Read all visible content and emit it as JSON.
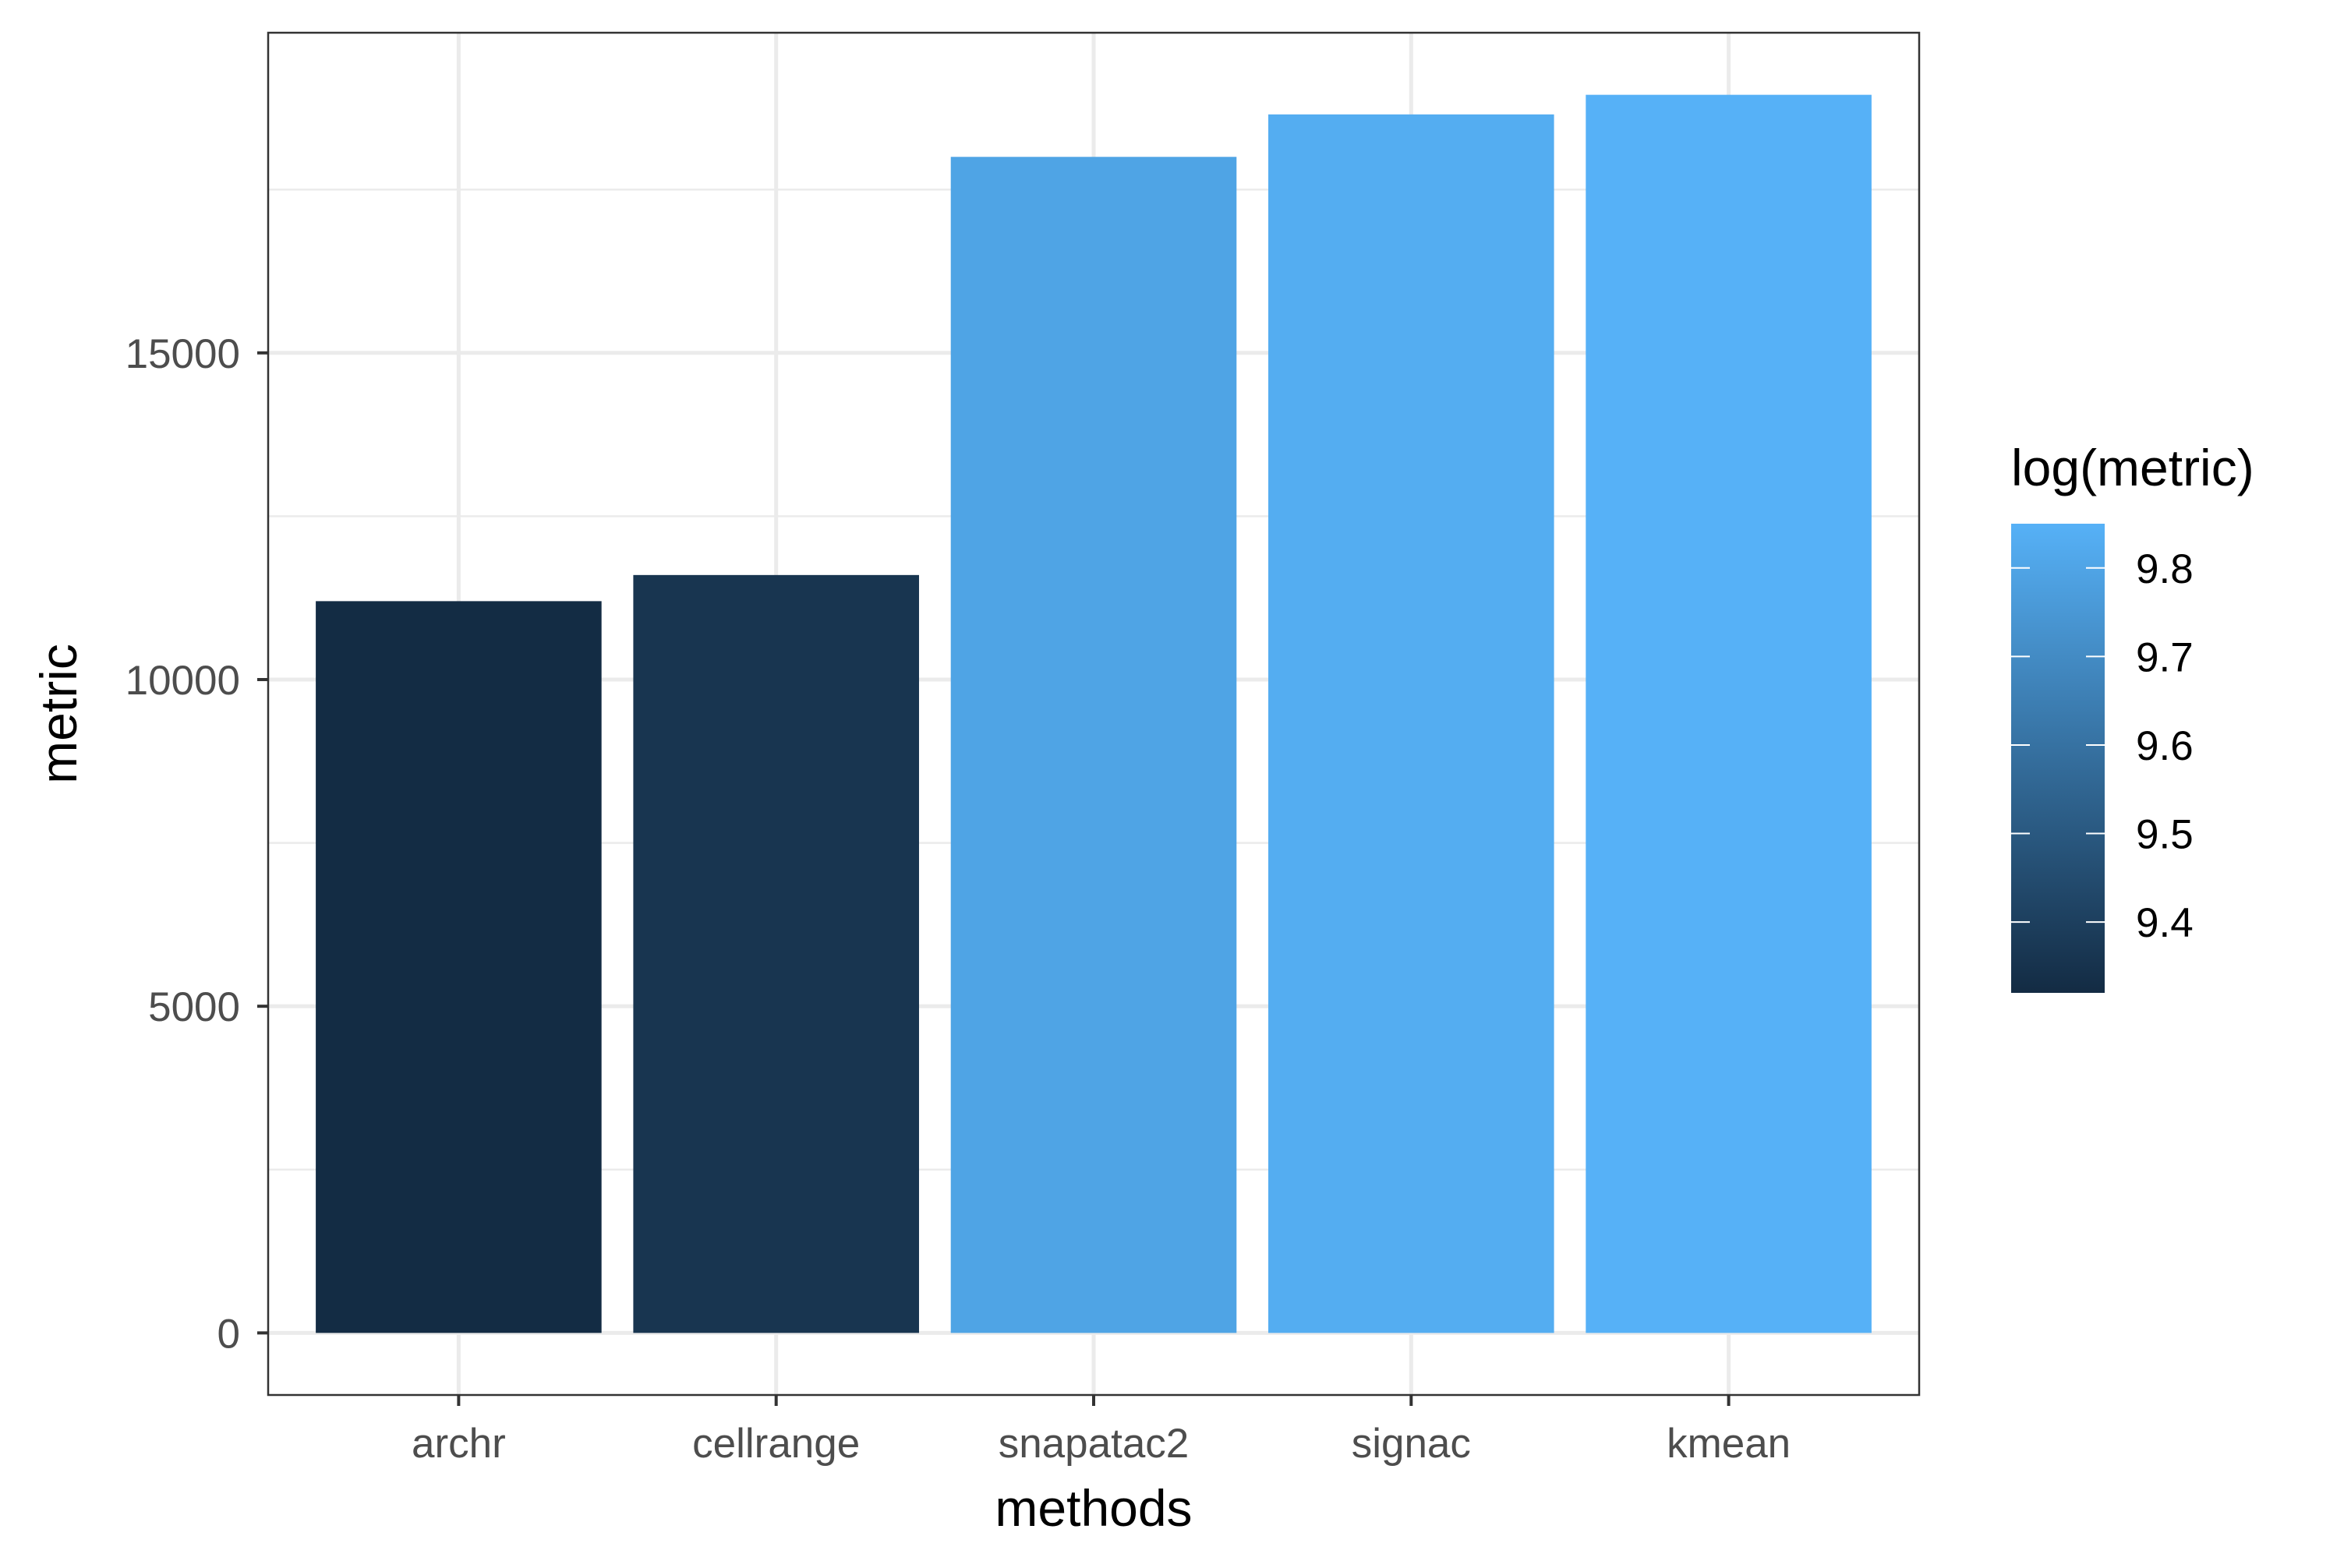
{
  "chart_data": {
    "type": "bar",
    "xlabel": "methods",
    "ylabel": "metric",
    "categories": [
      "archr",
      "cellrange",
      "snapatac2",
      "signac",
      "kmean"
    ],
    "values": [
      11200,
      11600,
      18000,
      18650,
      18950
    ],
    "ylim": [
      -950,
      19900
    ],
    "yticks": [
      0,
      5000,
      10000,
      15000
    ],
    "ytick_labels": [
      "0",
      "5000",
      "10000",
      "15000"
    ],
    "grid": true,
    "legend": {
      "title": "log(metric)",
      "position": "right",
      "type": "colorbar",
      "range": [
        9.32,
        9.85
      ],
      "ticks": [
        9.4,
        9.5,
        9.6,
        9.7,
        9.8
      ],
      "tick_labels": [
        "9.4",
        "9.5",
        "9.6",
        "9.7",
        "9.8"
      ],
      "color_low": "#132B43",
      "color_high": "#56B1F7"
    }
  }
}
